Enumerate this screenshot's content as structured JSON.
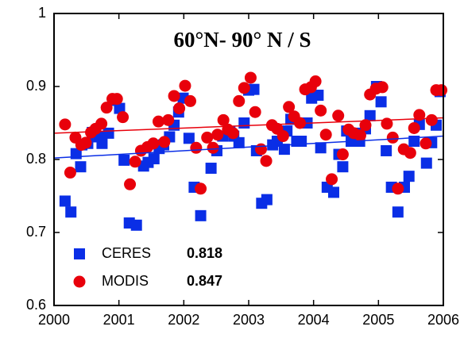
{
  "chart_data": {
    "type": "scatter",
    "title": "60°N- 90° N / S",
    "xlim": [
      2000,
      2006
    ],
    "xticks": [
      2000,
      2001,
      2002,
      2003,
      2004,
      2005,
      2006
    ],
    "ylim": [
      0.6,
      1
    ],
    "yticks": [
      0.6,
      0.7,
      0.8,
      0.9,
      1
    ],
    "legend": "lower left",
    "series": [
      {
        "name": "CERES",
        "color": "#0a2ee6",
        "marker": "square",
        "stat": 0.818,
        "trend": {
          "x": [
            2000,
            2006
          ],
          "values": [
            0.802,
            0.832
          ]
        },
        "x": [
          2000.17,
          2000.26,
          2000.34,
          2000.41,
          2000.43,
          2000.52,
          2000.59,
          2000.69,
          2000.74,
          2000.84,
          2000.93,
          2001.01,
          2001.08,
          2001.16,
          2001.27,
          2001.38,
          2001.45,
          2001.54,
          2001.62,
          2001.69,
          2001.78,
          2001.85,
          2001.92,
          2001.99,
          2002.08,
          2002.16,
          2002.26,
          2002.42,
          2002.51,
          2002.6,
          2002.71,
          2002.77,
          2002.85,
          2002.93,
          2003.0,
          2003.08,
          2003.12,
          2003.2,
          2003.28,
          2003.37,
          2003.44,
          2003.55,
          2003.59,
          2003.65,
          2003.74,
          2003.81,
          2003.9,
          2003.97,
          2004.07,
          2004.11,
          2004.21,
          2004.31,
          2004.39,
          2004.45,
          2004.51,
          2004.58,
          2004.66,
          2004.71,
          2004.8,
          2004.87,
          2004.97,
          2005.04,
          2005.12,
          2005.2,
          2005.3,
          2005.4,
          2005.47,
          2005.55,
          2005.63,
          2005.74,
          2005.82,
          2005.89,
          2005.95
        ],
        "values": [
          0.743,
          0.728,
          0.808,
          0.79,
          0.82,
          0.822,
          0.837,
          0.831,
          0.822,
          0.836,
          0.881,
          0.87,
          0.799,
          0.713,
          0.71,
          0.791,
          0.796,
          0.801,
          0.815,
          0.82,
          0.831,
          0.847,
          0.865,
          0.884,
          0.829,
          0.762,
          0.723,
          0.788,
          0.812,
          0.832,
          0.838,
          0.832,
          0.823,
          0.85,
          0.895,
          0.896,
          0.812,
          0.74,
          0.745,
          0.82,
          0.825,
          0.814,
          0.839,
          0.855,
          0.825,
          0.825,
          0.85,
          0.884,
          0.888,
          0.816,
          0.762,
          0.755,
          0.807,
          0.79,
          0.839,
          0.825,
          0.836,
          0.825,
          0.842,
          0.86,
          0.9,
          0.879,
          0.812,
          0.762,
          0.728,
          0.762,
          0.777,
          0.825,
          0.848,
          0.795,
          0.823,
          0.847,
          0.893
        ]
      },
      {
        "name": "MODIS",
        "color": "#e8000b",
        "marker": "circle",
        "stat": 0.847,
        "trend": {
          "x": [
            2000,
            2006
          ],
          "values": [
            0.836,
            0.857
          ]
        },
        "x": [
          2000.17,
          2000.25,
          2000.33,
          2000.42,
          2000.49,
          2000.57,
          2000.64,
          2000.73,
          2000.81,
          2000.9,
          2000.97,
          2001.06,
          2001.17,
          2001.25,
          2001.34,
          2001.44,
          2001.53,
          2001.61,
          2001.7,
          2001.76,
          2001.85,
          2001.93,
          2002.02,
          2002.1,
          2002.19,
          2002.26,
          2002.36,
          2002.45,
          2002.52,
          2002.61,
          2002.68,
          2002.76,
          2002.85,
          2002.93,
          2003.03,
          2003.1,
          2003.19,
          2003.27,
          2003.36,
          2003.44,
          2003.53,
          2003.62,
          2003.7,
          2003.79,
          2003.87,
          2003.96,
          2004.03,
          2004.11,
          2004.19,
          2004.28,
          2004.38,
          2004.45,
          2004.54,
          2004.62,
          2004.72,
          2004.8,
          2004.87,
          2004.96,
          2005.06,
          2005.13,
          2005.22,
          2005.3,
          2005.39,
          2005.49,
          2005.55,
          2005.63,
          2005.73,
          2005.82,
          2005.89,
          2005.97
        ],
        "values": [
          0.848,
          0.782,
          0.83,
          0.82,
          0.823,
          0.837,
          0.842,
          0.849,
          0.871,
          0.883,
          0.883,
          0.858,
          0.766,
          0.797,
          0.812,
          0.817,
          0.822,
          0.852,
          0.824,
          0.854,
          0.887,
          0.87,
          0.901,
          0.88,
          0.816,
          0.76,
          0.83,
          0.816,
          0.834,
          0.854,
          0.841,
          0.836,
          0.88,
          0.898,
          0.912,
          0.865,
          0.814,
          0.798,
          0.847,
          0.842,
          0.832,
          0.872,
          0.859,
          0.85,
          0.896,
          0.899,
          0.907,
          0.867,
          0.834,
          0.773,
          0.86,
          0.807,
          0.841,
          0.836,
          0.833,
          0.847,
          0.889,
          0.897,
          0.899,
          0.849,
          0.83,
          0.76,
          0.814,
          0.809,
          0.843,
          0.861,
          0.822,
          0.854,
          0.895,
          0.895
        ]
      }
    ]
  }
}
